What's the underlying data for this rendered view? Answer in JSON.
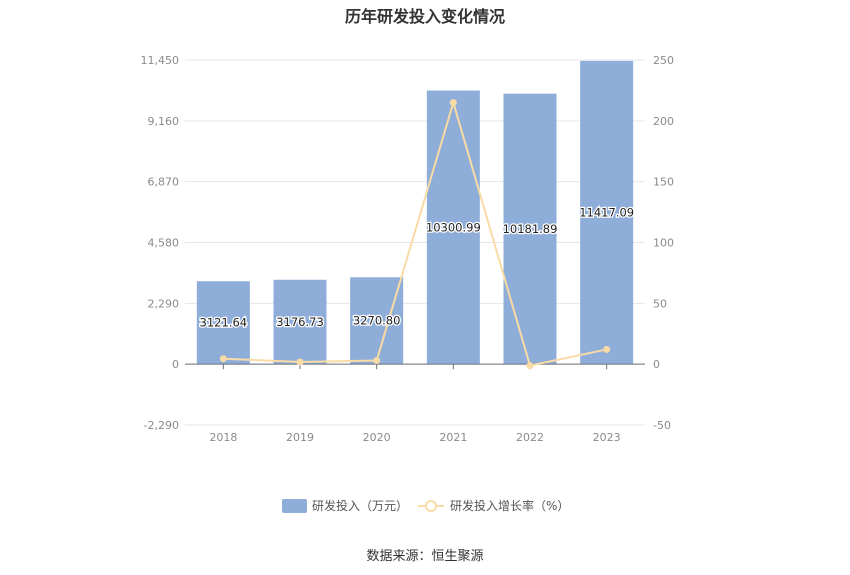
{
  "chart_data": {
    "type": "bar",
    "title": "历年研发投入变化情况",
    "categories": [
      "2018",
      "2019",
      "2020",
      "2021",
      "2022",
      "2023"
    ],
    "series": [
      {
        "name": "研发投入（万元）",
        "type": "bar",
        "axis": "left",
        "values": [
          3121.64,
          3176.73,
          3270.8,
          10300.99,
          10181.89,
          11417.09
        ],
        "labels": [
          "3121.64",
          "3176.73",
          "3270.80",
          "10300.99",
          "10181.89",
          "11417.09"
        ],
        "color": "#8eadd9"
      },
      {
        "name": "研发投入增长率（%）",
        "type": "line",
        "axis": "right",
        "values": [
          4.5,
          1.8,
          3.0,
          215.0,
          -1.2,
          12.1
        ],
        "color": "#f9dba6"
      }
    ],
    "left_axis": {
      "ylim": [
        -2290,
        11450
      ],
      "ticks": [
        11450,
        9160,
        6870,
        4580,
        2290,
        0,
        -2290
      ],
      "tick_labels": [
        "11,450",
        "9,160",
        "6,870",
        "4,580",
        "2,290",
        "0",
        "-2,290"
      ]
    },
    "right_axis": {
      "ylim": [
        -50,
        250
      ],
      "ticks": [
        250,
        200,
        150,
        100,
        50,
        0,
        -50
      ],
      "tick_labels": [
        "250",
        "200",
        "150",
        "100",
        "50",
        "0",
        "-50"
      ]
    },
    "grid": true,
    "legend_position": "bottom-center"
  },
  "source_text": "数据来源：恒生聚源"
}
